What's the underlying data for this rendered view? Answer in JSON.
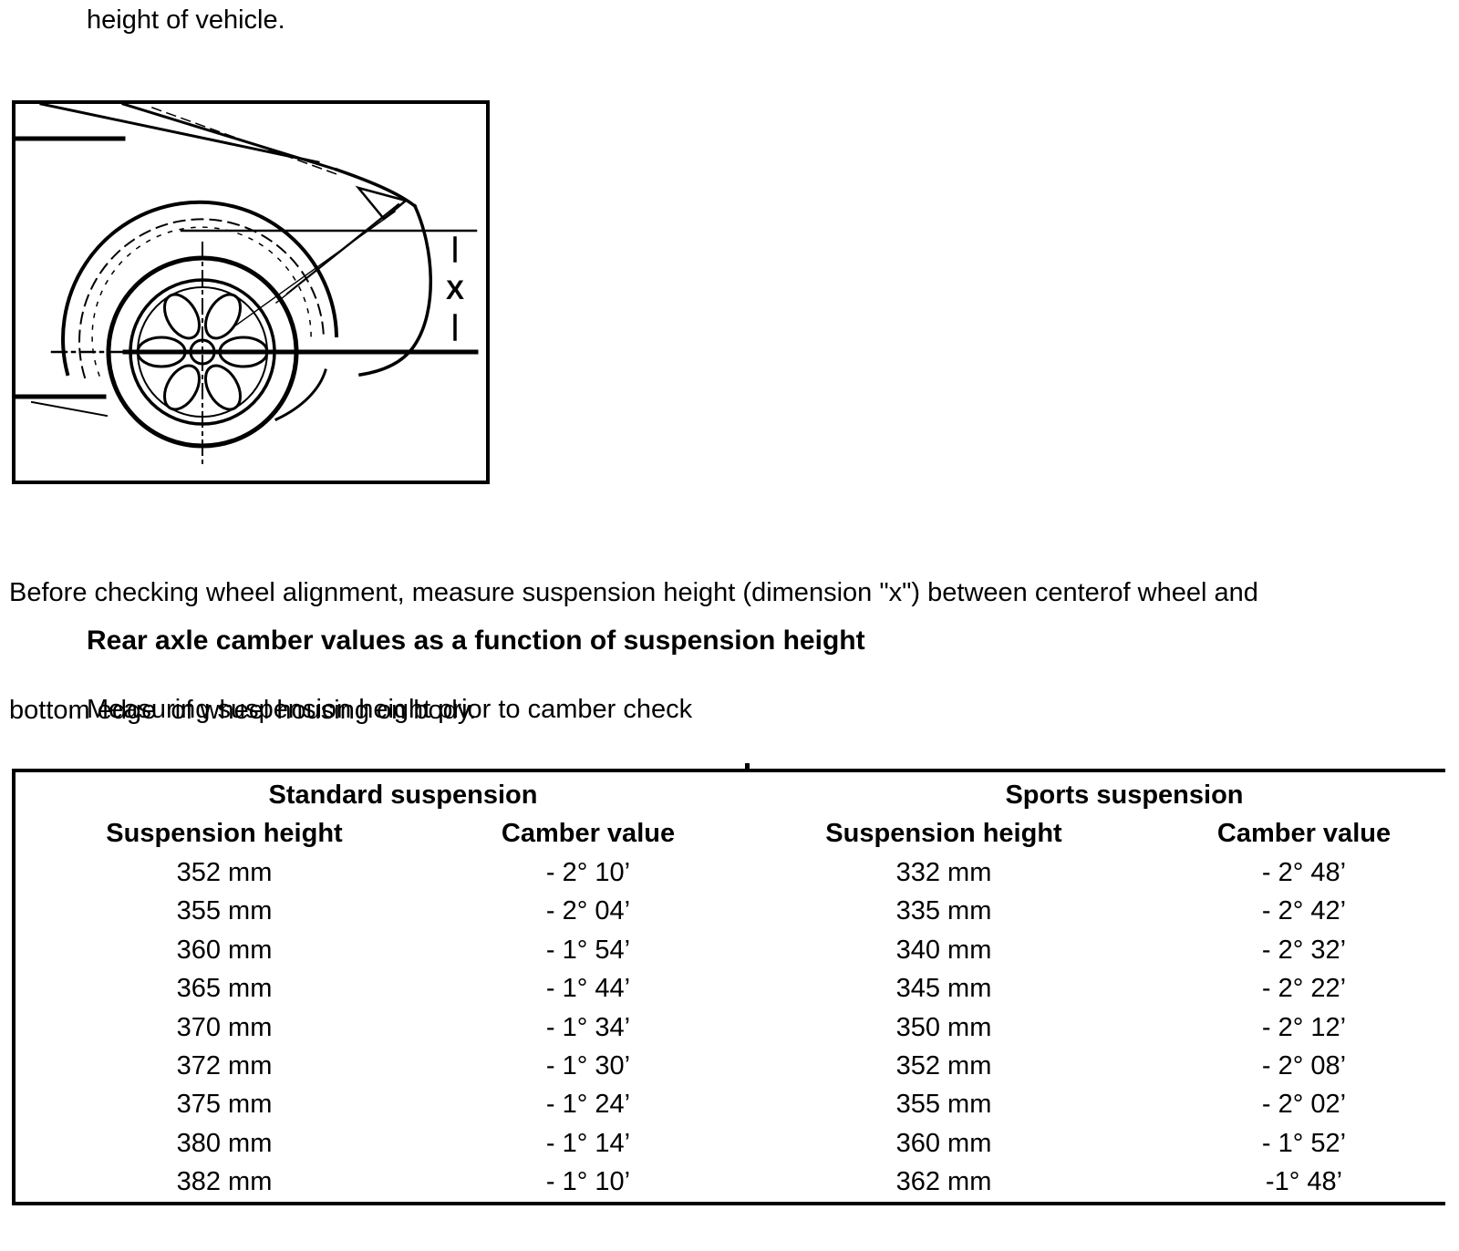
{
  "colors": {
    "ink": "#000000",
    "background": "#ffffff"
  },
  "page": {
    "top_text": "height of vehicle.",
    "caption_line1": "Before checking wheel alignment, measure suspension height (dimension \"x\") between centerof wheel and",
    "caption_line2": "bottom edge  of wheel housing on body.",
    "section_heading": "Rear axle camber values as a function of suspension height",
    "subheading": "Measuring suspension height prior to camber check"
  },
  "figure": {
    "dimension_label": "X"
  },
  "table": {
    "group_headers": [
      {
        "label": "Standard suspension"
      },
      {
        "label": "Sports suspension"
      }
    ],
    "column_headers": [
      "Suspension height",
      "Camber value",
      "Suspension height",
      "Camber value"
    ],
    "rows": [
      [
        "352 mm",
        "- 2° 10’",
        "332 mm",
        "- 2° 48’"
      ],
      [
        "355 mm",
        "- 2° 04’",
        "335 mm",
        "- 2° 42’"
      ],
      [
        "360 mm",
        "- 1° 54’",
        "340 mm",
        "- 2° 32’"
      ],
      [
        "365 mm",
        "- 1° 44’",
        "345 mm",
        "- 2° 22’"
      ],
      [
        "370 mm",
        "- 1° 34’",
        "350 mm",
        "- 2° 12’"
      ],
      [
        "372 mm",
        "- 1° 30’",
        "352 mm",
        "- 2° 08’"
      ],
      [
        "375 mm",
        "- 1° 24’",
        "355 mm",
        "- 2° 02’"
      ],
      [
        "380 mm",
        "- 1° 14’",
        "360 mm",
        "- 1° 52’"
      ],
      [
        "382 mm",
        "- 1° 10’",
        "362 mm",
        "-1° 48’"
      ]
    ]
  }
}
